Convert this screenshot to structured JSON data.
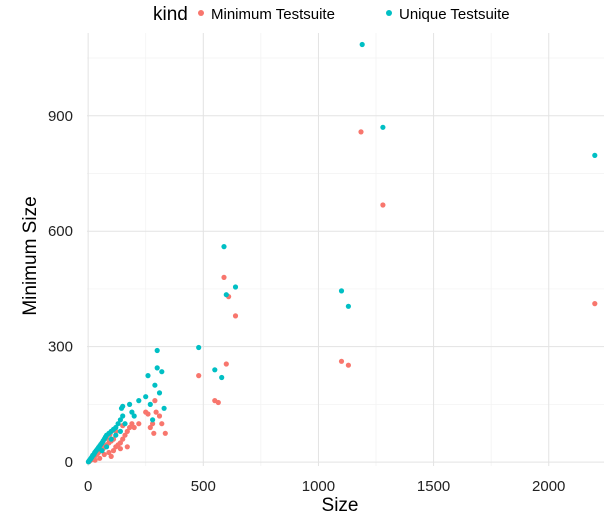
{
  "chart_data": {
    "type": "scatter",
    "title": "",
    "xlabel": "Size",
    "ylabel": "Minimum Size",
    "xlim": [
      -5,
      2240
    ],
    "ylim": [
      -10,
      1115
    ],
    "x_ticks": [
      0,
      500,
      1000,
      1500,
      2000
    ],
    "y_ticks": [
      0,
      300,
      600,
      900
    ],
    "grid": true,
    "legend": {
      "title": "kind",
      "placement": "top"
    },
    "series": [
      {
        "name": "Minimum Testsuite",
        "color": "#F8766D",
        "points": [
          [
            2,
            1
          ],
          [
            4,
            2
          ],
          [
            6,
            3
          ],
          [
            8,
            4
          ],
          [
            10,
            5
          ],
          [
            12,
            6
          ],
          [
            15,
            7
          ],
          [
            18,
            8
          ],
          [
            20,
            10
          ],
          [
            22,
            12
          ],
          [
            25,
            14
          ],
          [
            28,
            15
          ],
          [
            30,
            18
          ],
          [
            35,
            20
          ],
          [
            40,
            22
          ],
          [
            45,
            25
          ],
          [
            50,
            28
          ],
          [
            55,
            30
          ],
          [
            60,
            32
          ],
          [
            65,
            35
          ],
          [
            70,
            40
          ],
          [
            80,
            45
          ],
          [
            90,
            50
          ],
          [
            100,
            55
          ],
          [
            110,
            60
          ],
          [
            30,
            5
          ],
          [
            50,
            10
          ],
          [
            70,
            20
          ],
          [
            90,
            25
          ],
          [
            100,
            15
          ],
          [
            110,
            30
          ],
          [
            120,
            40
          ],
          [
            130,
            45
          ],
          [
            140,
            50
          ],
          [
            150,
            60
          ],
          [
            160,
            70
          ],
          [
            170,
            80
          ],
          [
            180,
            90
          ],
          [
            190,
            100
          ],
          [
            60,
            38
          ],
          [
            80,
            62
          ],
          [
            95,
            72
          ],
          [
            120,
            80
          ],
          [
            150,
            95
          ],
          [
            140,
            35
          ],
          [
            170,
            40
          ],
          [
            200,
            90
          ],
          [
            220,
            100
          ],
          [
            250,
            130
          ],
          [
            260,
            125
          ],
          [
            270,
            90
          ],
          [
            280,
            100
          ],
          [
            285,
            75
          ],
          [
            290,
            160
          ],
          [
            295,
            130
          ],
          [
            310,
            120
          ],
          [
            320,
            100
          ],
          [
            335,
            75
          ],
          [
            480,
            225
          ],
          [
            590,
            480
          ],
          [
            600,
            255
          ],
          [
            610,
            430
          ],
          [
            640,
            380
          ],
          [
            550,
            160
          ],
          [
            565,
            155
          ],
          [
            1100,
            262
          ],
          [
            1130,
            252
          ],
          [
            1185,
            858
          ],
          [
            1280,
            668
          ],
          [
            2200,
            412
          ]
        ]
      },
      {
        "name": "Unique Testsuite",
        "color": "#00BFC4",
        "points": [
          [
            1,
            1
          ],
          [
            3,
            2
          ],
          [
            5,
            4
          ],
          [
            7,
            6
          ],
          [
            10,
            8
          ],
          [
            12,
            10
          ],
          [
            15,
            12
          ],
          [
            18,
            15
          ],
          [
            20,
            18
          ],
          [
            25,
            20
          ],
          [
            28,
            24
          ],
          [
            30,
            26
          ],
          [
            35,
            30
          ],
          [
            40,
            34
          ],
          [
            45,
            38
          ],
          [
            50,
            42
          ],
          [
            55,
            46
          ],
          [
            60,
            50
          ],
          [
            65,
            55
          ],
          [
            70,
            60
          ],
          [
            75,
            65
          ],
          [
            80,
            70
          ],
          [
            90,
            75
          ],
          [
            100,
            80
          ],
          [
            110,
            85
          ],
          [
            120,
            90
          ],
          [
            130,
            100
          ],
          [
            140,
            110
          ],
          [
            150,
            120
          ],
          [
            60,
            30
          ],
          [
            80,
            40
          ],
          [
            100,
            60
          ],
          [
            120,
            70
          ],
          [
            140,
            80
          ],
          [
            145,
            140
          ],
          [
            150,
            145
          ],
          [
            160,
            100
          ],
          [
            180,
            150
          ],
          [
            190,
            130
          ],
          [
            200,
            120
          ],
          [
            220,
            160
          ],
          [
            250,
            170
          ],
          [
            260,
            225
          ],
          [
            270,
            150
          ],
          [
            280,
            110
          ],
          [
            290,
            200
          ],
          [
            300,
            245
          ],
          [
            300,
            290
          ],
          [
            310,
            180
          ],
          [
            320,
            235
          ],
          [
            330,
            140
          ],
          [
            480,
            298
          ],
          [
            580,
            220
          ],
          [
            590,
            560
          ],
          [
            600,
            435
          ],
          [
            640,
            455
          ],
          [
            550,
            240
          ],
          [
            1100,
            445
          ],
          [
            1130,
            405
          ],
          [
            1190,
            1085
          ],
          [
            1280,
            870
          ],
          [
            2200,
            797
          ]
        ]
      }
    ]
  }
}
